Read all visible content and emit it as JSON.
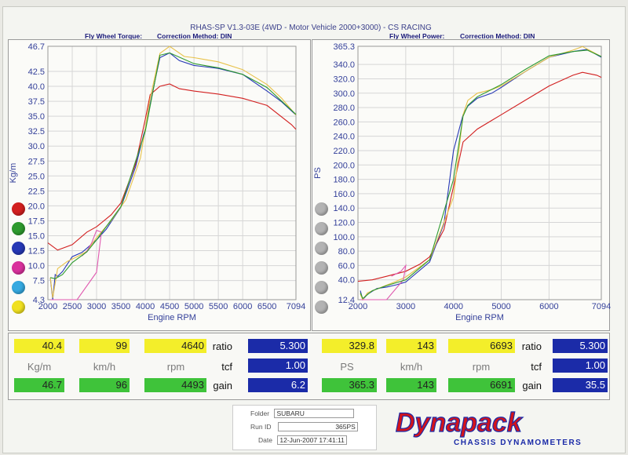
{
  "header": {
    "title": "RHAS-SP V1.3-03E  (4WD - Motor Vehicle 2000+3000) - CS RACING"
  },
  "left_panel": {
    "chart_label": "Fly Wheel Torque:",
    "correction": "Correction Method: DIN"
  },
  "right_panel": {
    "chart_label": "Fly Wheel Power:",
    "correction": "Correction Method: DIN"
  },
  "colors": {
    "red": "#d21f1f",
    "green": "#2e9a2e",
    "blue": "#2638b5",
    "pink": "#e05ab0",
    "gold": "#e8c24a",
    "teal": "#35a9e0",
    "lightblue": "#7fb3e6"
  },
  "chart_data": [
    {
      "type": "line",
      "title": "Fly Wheel Torque",
      "xlabel": "Engine RPM",
      "ylabel": "Kg/m",
      "xlim": [
        2000,
        7094
      ],
      "ylim": [
        4.3,
        46.7
      ],
      "xticks": [
        "2000",
        "2500",
        "3000",
        "3500",
        "4000",
        "4500",
        "5000",
        "5500",
        "6000",
        "6500",
        "7094"
      ],
      "yticks": [
        "46.7",
        "42.5",
        "40.0",
        "37.5",
        "35.0",
        "32.5",
        "30.0",
        "27.5",
        "25.0",
        "22.5",
        "20.0",
        "17.5",
        "15.0",
        "12.5",
        "10.0",
        "7.5",
        "4.3"
      ],
      "grid": true,
      "series": [
        {
          "color": "red",
          "x": [
            2000,
            2200,
            2500,
            2800,
            3000,
            3300,
            3500,
            3800,
            4000,
            4100,
            4300,
            4500,
            4700,
            5000,
            5500,
            6000,
            6500,
            7000,
            7094
          ],
          "y": [
            13.8,
            12.6,
            13.5,
            15.6,
            16.5,
            18.5,
            20.5,
            27,
            34.5,
            38.6,
            40,
            40.4,
            39.6,
            39.2,
            38.7,
            38,
            36.8,
            33.6,
            32.8
          ]
        },
        {
          "color": "blue",
          "x": [
            2050,
            2100,
            2150,
            2200,
            2300,
            2500,
            2700,
            3000,
            3200,
            3500,
            3800,
            4000,
            4200,
            4300,
            4500,
            4700,
            5000,
            5500,
            6000,
            6500,
            6800,
            7094
          ],
          "y": [
            7.9,
            4.3,
            8.5,
            8.2,
            9,
            11.5,
            12.2,
            14.3,
            16.1,
            19.8,
            26.5,
            33,
            41,
            44.8,
            45.6,
            44.3,
            43.5,
            43,
            42,
            39.2,
            37.4,
            35.2
          ]
        },
        {
          "color": "gold",
          "x": [
            2050,
            2100,
            2200,
            2400,
            2600,
            2800,
            3000,
            3300,
            3600,
            3900,
            4100,
            4300,
            4500,
            4800,
            5000,
            5500,
            6000,
            6500,
            6800,
            7094
          ],
          "y": [
            8,
            4.6,
            9.5,
            10.7,
            11.5,
            12.4,
            14.7,
            17.5,
            21,
            28,
            38,
            45.5,
            46.7,
            45,
            44.8,
            44.1,
            42.8,
            40.3,
            38,
            35.2
          ]
        },
        {
          "color": "pink",
          "x": [
            2050,
            2600,
            3000,
            3100,
            3000,
            2900,
            2800,
            2700
          ],
          "y": [
            4.3,
            4.3,
            8.9,
            15.6,
            15.9,
            13.8,
            12.4,
            11.6
          ]
        },
        {
          "color": "green",
          "x": [
            2050,
            2150,
            2300,
            2500,
            2800,
            3000,
            3500,
            4000,
            4300,
            4500,
            5000,
            5500,
            6000,
            6500,
            7094
          ],
          "y": [
            8,
            7.8,
            8.5,
            10.5,
            12.3,
            14.3,
            19.9,
            32.5,
            45.2,
            45.6,
            43.8,
            43.1,
            42,
            39.8,
            35.3
          ]
        }
      ]
    },
    {
      "type": "line",
      "title": "Fly Wheel Power",
      "xlabel": "Engine RPM",
      "ylabel": "PS",
      "xlim": [
        2000,
        7094
      ],
      "ylim": [
        12.4,
        365.3
      ],
      "xticks": [
        "2000",
        "3000",
        "4000",
        "5000",
        "6000",
        "7094"
      ],
      "yticks": [
        "365.3",
        "340.0",
        "320.0",
        "300.0",
        "280.0",
        "260.0",
        "240.0",
        "220.0",
        "200.0",
        "180.0",
        "160.0",
        "140.0",
        "120.0",
        "100.0",
        "80.0",
        "60.0",
        "40.0",
        "12.4"
      ],
      "grid": true,
      "series": [
        {
          "color": "red",
          "x": [
            2000,
            2300,
            2600,
            3000,
            3300,
            3500,
            3800,
            4000,
            4200,
            4500,
            4800,
            5000,
            5500,
            6000,
            6500,
            6700,
            7000,
            7094
          ],
          "y": [
            38,
            40,
            45,
            52,
            62,
            72,
            110,
            170,
            232,
            250,
            262,
            270,
            290,
            310,
            325,
            329,
            325,
            322
          ]
        },
        {
          "color": "blue",
          "x": [
            2050,
            2100,
            2200,
            2400,
            2600,
            2800,
            3000,
            3500,
            3800,
            4000,
            4200,
            4300,
            4500,
            4800,
            5000,
            5500,
            6000,
            6500,
            6800,
            7094
          ],
          "y": [
            25,
            12.4,
            20,
            28,
            30,
            33,
            37,
            65,
            118,
            220,
            270,
            282,
            293,
            300,
            308,
            330,
            350,
            358,
            361,
            350
          ]
        },
        {
          "color": "gold",
          "x": [
            2050,
            2100,
            2200,
            2500,
            2800,
            3000,
            3500,
            4000,
            4200,
            4300,
            4500,
            4800,
            5000,
            5500,
            6000,
            6500,
            6700,
            7094
          ],
          "y": [
            20,
            12.4,
            22,
            30,
            38,
            44,
            68,
            155,
            270,
            290,
            300,
            305,
            310,
            330,
            350,
            360,
            365,
            351
          ]
        },
        {
          "color": "pink",
          "x": [
            2050,
            2600,
            2950,
            3000,
            2900,
            2700
          ],
          "y": [
            12.4,
            12.4,
            40,
            60,
            52,
            45
          ]
        },
        {
          "color": "green",
          "x": [
            2050,
            2100,
            2300,
            2600,
            3000,
            3500,
            4000,
            4200,
            4300,
            4500,
            5000,
            5500,
            6000,
            6500,
            6800,
            7094
          ],
          "y": [
            22,
            14,
            25,
            32,
            40,
            68,
            180,
            268,
            283,
            295,
            312,
            333,
            352,
            358,
            360,
            351
          ]
        }
      ]
    }
  ],
  "readouts": {
    "row1": {
      "torque": "40.4",
      "speed": "99",
      "rpm": "4640",
      "ratio_label": "ratio",
      "ratio": "5.300",
      "power": "329.8",
      "speed2": "143",
      "rpm2": "6693",
      "ratio_label2": "ratio",
      "ratio2": "5.300"
    },
    "row2": {
      "unit1": "Kg/m",
      "unit2": "km/h",
      "unit3": "rpm",
      "tcf_label": "tcf",
      "tcf": "1.00",
      "unit4": "PS",
      "unit5": "km/h",
      "unit6": "rpm",
      "tcf_label2": "tcf",
      "tcf2": "1.00"
    },
    "row3": {
      "torque": "46.7",
      "speed": "96",
      "rpm": "4493",
      "gain_label": "gain",
      "gain": "6.2",
      "power": "365.3",
      "speed2": "143",
      "rpm2": "6691",
      "gain_label2": "gain",
      "gain2": "35.5"
    }
  },
  "info": {
    "folder_label": "Folder",
    "folder": "SUBARU",
    "runid_label": "Run ID",
    "runid": "365PS",
    "date_label": "Date",
    "date": "12-Jun-2007   17:41:11"
  },
  "brand": {
    "name": "Dynapack",
    "tagline": "CHASSIS DYNAMOMETERS"
  }
}
